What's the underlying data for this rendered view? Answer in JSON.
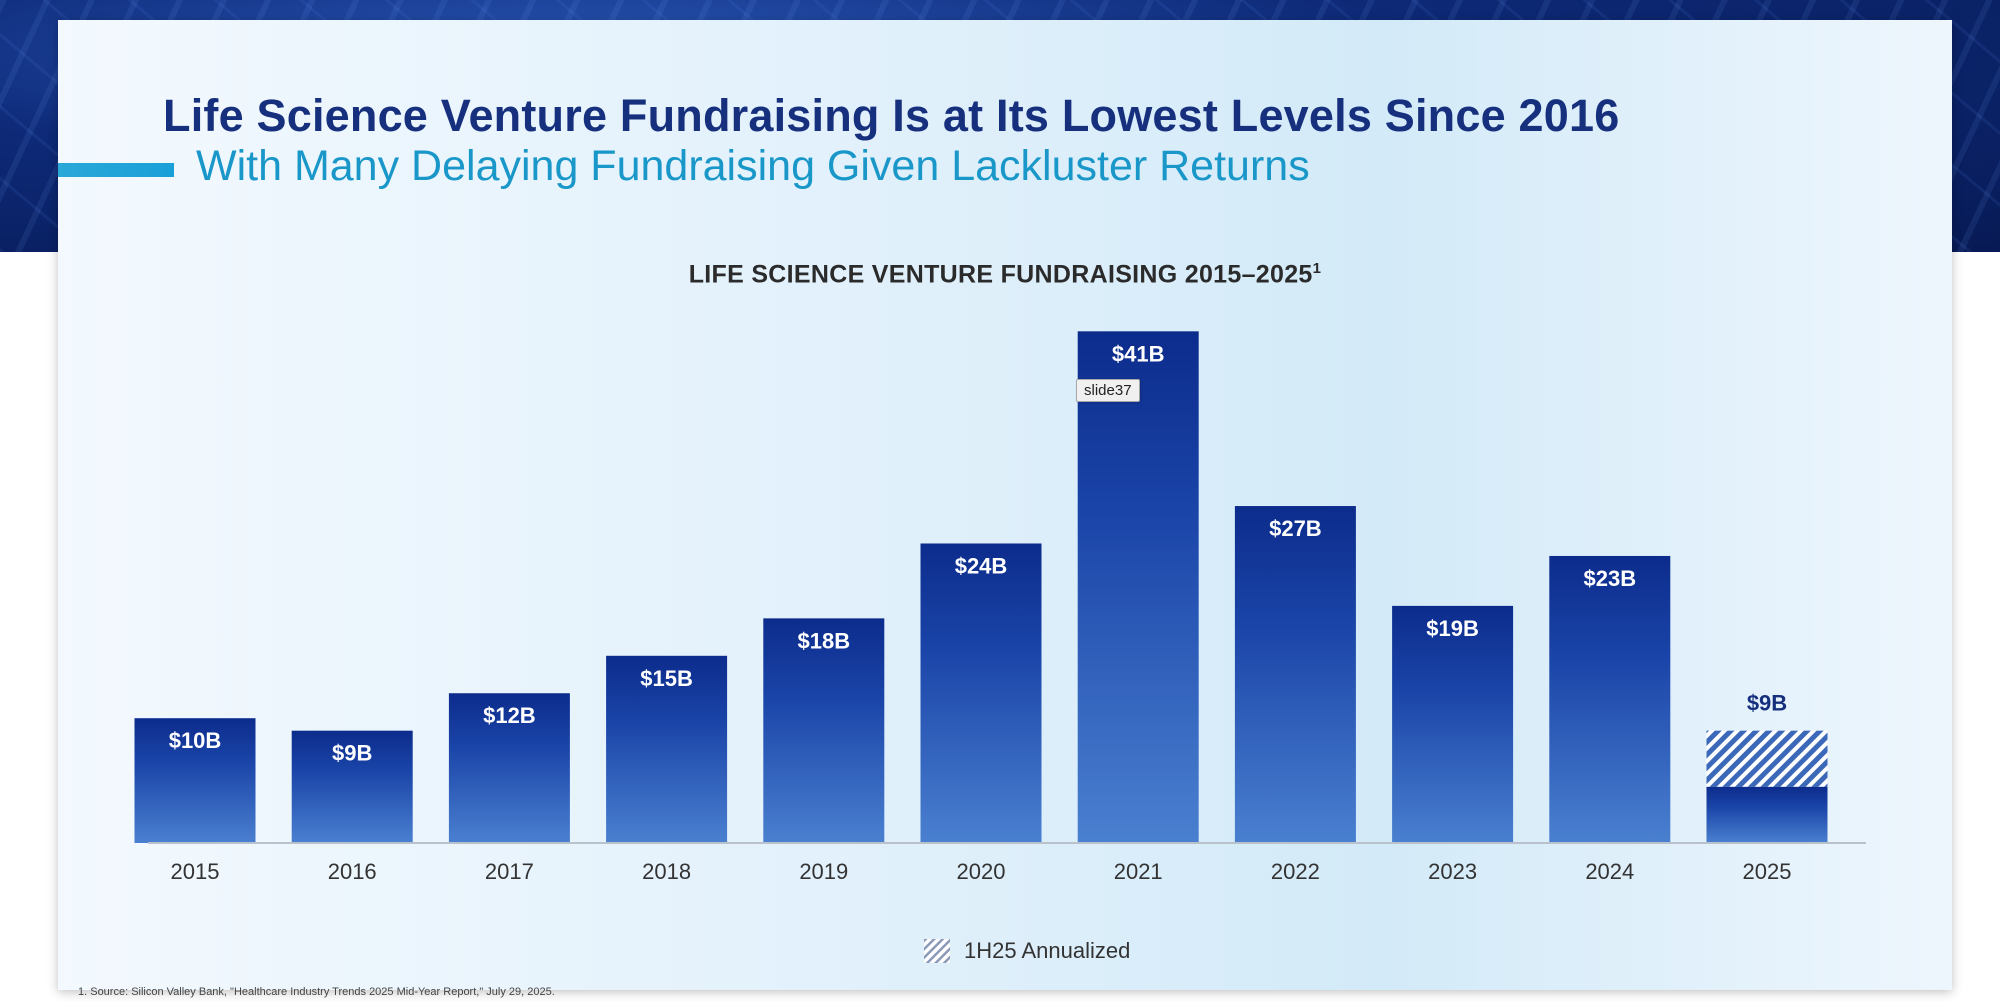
{
  "slide": {
    "title": "Life Science Venture Fundraising Is at Its Lowest Levels Since 2016",
    "subtitle": "With Many Delaying Fundraising Given Lackluster Returns",
    "tooltip": "slide37",
    "footnote": "1.   Source: Silicon Valley Bank, \"Healthcare Industry Trends 2025 Mid-Year Report,\" July 29, 2025."
  },
  "colors": {
    "title": "#17307e",
    "subtitle": "#1a97c9",
    "bar_top": "#0c2c8c",
    "bar_bottom": "#4a80d0",
    "label_dark": "#17307e"
  },
  "chart_data": {
    "type": "bar",
    "title": "LIFE SCIENCE VENTURE FUNDRAISING 2015–2025",
    "title_footnote_marker": "1",
    "categories": [
      "2015",
      "2016",
      "2017",
      "2018",
      "2019",
      "2020",
      "2021",
      "2022",
      "2023",
      "2024",
      "2025"
    ],
    "values": [
      10,
      9,
      12,
      15,
      18,
      24,
      41,
      27,
      19,
      23,
      9
    ],
    "value_labels": [
      "$10B",
      "$9B",
      "$12B",
      "$15B",
      "$18B",
      "$24B",
      "$41B",
      "$27B",
      "$19B",
      "$23B",
      "$9B"
    ],
    "partial": {
      "category": "2025",
      "actual": 4.5,
      "annualized_total": 9
    },
    "unit": "$B",
    "ylim": [
      0,
      42
    ],
    "legend": [
      "1H25 Annualized"
    ],
    "xlabel": "",
    "ylabel": ""
  }
}
